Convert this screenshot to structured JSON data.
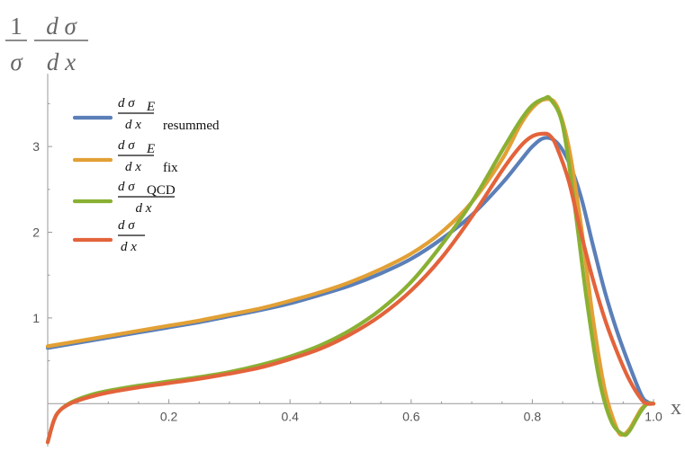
{
  "chart_data": {
    "type": "line",
    "title": "",
    "ylabel": {
      "num_top": "1",
      "den_top": "σ",
      "num": "d σ",
      "den": "d x"
    },
    "xlabel": "x",
    "xlim": [
      0.0,
      1.0
    ],
    "ylim": [
      -0.5,
      3.85
    ],
    "x_ticks": [
      0.2,
      0.4,
      0.6,
      0.8,
      1.0
    ],
    "x_tick_labels": [
      "0.2",
      "0.4",
      "0.6",
      "0.8",
      "1.0"
    ],
    "y_ticks": [
      1,
      2,
      3
    ],
    "y_tick_labels": [
      "1",
      "2",
      "3"
    ],
    "grid": false,
    "legend": "top-left",
    "legend_entries": [
      {
        "num_base": "d σ",
        "num_sub": "E",
        "den": "d x",
        "suffix": "resummed"
      },
      {
        "num_base": "d σ",
        "num_sub": "E",
        "den": "d x",
        "suffix": "fix"
      },
      {
        "num_base": "d σ",
        "num_sub": "QCD",
        "den": "d x",
        "suffix": ""
      },
      {
        "num_base": "d σ",
        "num_sub": "",
        "den": "d x",
        "suffix": ""
      }
    ],
    "series": [
      {
        "color": "#5b7fb8",
        "x": [
          0.0,
          0.05,
          0.1,
          0.15,
          0.2,
          0.25,
          0.3,
          0.35,
          0.4,
          0.45,
          0.5,
          0.55,
          0.6,
          0.65,
          0.7,
          0.75,
          0.78,
          0.8,
          0.82,
          0.84,
          0.86,
          0.88,
          0.9,
          0.92,
          0.94,
          0.96,
          0.98,
          0.99,
          1.0
        ],
        "y": [
          0.65,
          0.71,
          0.77,
          0.83,
          0.89,
          0.95,
          1.02,
          1.09,
          1.17,
          1.27,
          1.38,
          1.52,
          1.69,
          1.92,
          2.2,
          2.57,
          2.83,
          3.0,
          3.1,
          3.05,
          2.82,
          2.42,
          1.85,
          1.3,
          0.84,
          0.45,
          0.1,
          0.02,
          0.0
        ]
      },
      {
        "color": "#e2a035",
        "x": [
          0.0,
          0.05,
          0.1,
          0.15,
          0.2,
          0.25,
          0.3,
          0.35,
          0.4,
          0.45,
          0.5,
          0.55,
          0.6,
          0.65,
          0.7,
          0.75,
          0.78,
          0.8,
          0.82,
          0.84,
          0.86,
          0.88,
          0.9,
          0.92,
          0.94,
          0.95,
          0.96,
          0.97,
          0.98,
          0.99,
          1.0
        ],
        "y": [
          0.67,
          0.73,
          0.79,
          0.85,
          0.91,
          0.97,
          1.04,
          1.11,
          1.2,
          1.3,
          1.42,
          1.57,
          1.75,
          2.0,
          2.35,
          2.85,
          3.25,
          3.45,
          3.55,
          3.48,
          3.0,
          2.1,
          1.0,
          0.15,
          -0.3,
          -0.36,
          -0.3,
          -0.18,
          -0.06,
          0.0,
          0.0
        ]
      },
      {
        "color": "#8ab033",
        "x": [
          0.0,
          0.01,
          0.02,
          0.04,
          0.07,
          0.1,
          0.15,
          0.2,
          0.25,
          0.3,
          0.35,
          0.4,
          0.45,
          0.5,
          0.55,
          0.6,
          0.65,
          0.7,
          0.75,
          0.78,
          0.8,
          0.82,
          0.83,
          0.85,
          0.87,
          0.89,
          0.91,
          0.93,
          0.95,
          0.96,
          0.97,
          0.98,
          0.99,
          1.0
        ],
        "y": [
          -0.45,
          -0.2,
          -0.08,
          0.02,
          0.1,
          0.15,
          0.21,
          0.26,
          0.31,
          0.37,
          0.45,
          0.55,
          0.68,
          0.86,
          1.1,
          1.42,
          1.85,
          2.35,
          2.95,
          3.3,
          3.48,
          3.56,
          3.55,
          3.25,
          2.3,
          1.2,
          0.3,
          -0.2,
          -0.36,
          -0.32,
          -0.2,
          -0.08,
          0.0,
          0.0
        ]
      },
      {
        "color": "#e3633b",
        "x": [
          0.0,
          0.01,
          0.02,
          0.04,
          0.07,
          0.1,
          0.15,
          0.2,
          0.25,
          0.3,
          0.35,
          0.4,
          0.45,
          0.5,
          0.55,
          0.6,
          0.65,
          0.7,
          0.75,
          0.78,
          0.8,
          0.82,
          0.83,
          0.84,
          0.86,
          0.88,
          0.9,
          0.92,
          0.94,
          0.96,
          0.98,
          0.99,
          1.0
        ],
        "y": [
          -0.45,
          -0.2,
          -0.08,
          0.01,
          0.08,
          0.13,
          0.19,
          0.24,
          0.29,
          0.35,
          0.42,
          0.52,
          0.64,
          0.81,
          1.03,
          1.32,
          1.7,
          2.18,
          2.72,
          3.0,
          3.12,
          3.15,
          3.12,
          3.0,
          2.6,
          2.0,
          1.45,
          0.98,
          0.6,
          0.28,
          0.05,
          0.0,
          0.0
        ]
      }
    ]
  }
}
